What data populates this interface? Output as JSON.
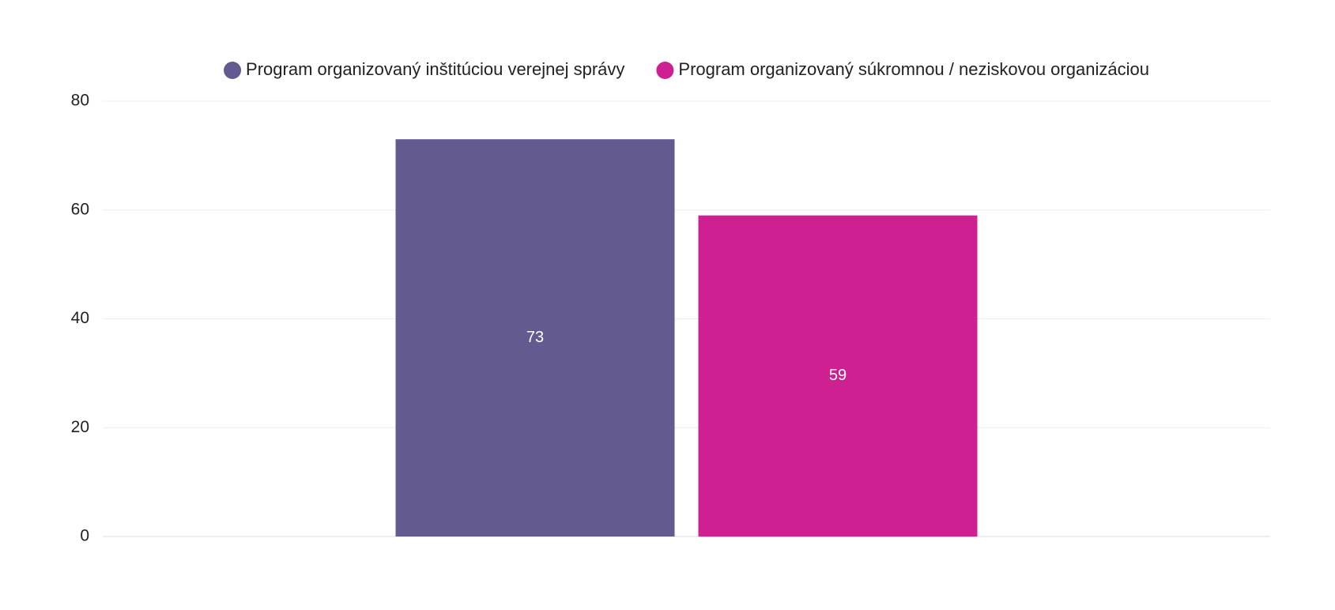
{
  "chart_data": {
    "type": "bar",
    "categories": [
      null
    ],
    "series": [
      {
        "name": "Program organizovaný inštitúciou verejnej správy",
        "color": "#635a8f",
        "values": [
          73
        ]
      },
      {
        "name": "Program organizovaný súkromnou / neziskovou organizáciou",
        "color": "#cf2092",
        "values": [
          59
        ]
      }
    ],
    "ylim": [
      0,
      80
    ],
    "yticks": [
      0,
      20,
      40,
      60,
      80
    ],
    "grid": true,
    "legend": "top"
  }
}
